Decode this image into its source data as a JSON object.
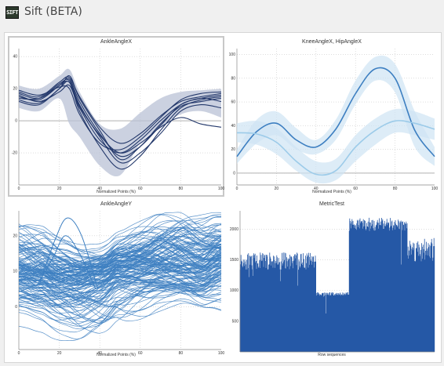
{
  "window": {
    "title": "Sift (BETA)",
    "icon_text": "SIFT"
  },
  "colors": {
    "dark_navy": "#23386b",
    "mid_blue": "#3d7fc1",
    "light_blue": "#9ccbe9",
    "bar_blue": "#2558a6",
    "band_dark": "#b9c2d6",
    "band_light": "#cfe4f4",
    "zero_line": "#b0b0b0",
    "grid": "#c9c9c9"
  },
  "panels": [
    {
      "title": "AnkleAngleX",
      "xlabel": "Normalized Points (%)",
      "chart_data": {
        "type": "line",
        "title": "AnkleAngleX",
        "xlabel": "Normalized Points (%)",
        "ylabel": "",
        "xlim": [
          0,
          100
        ],
        "ylim": [
          -40,
          45
        ],
        "xticks": [
          0,
          20,
          40,
          60,
          80,
          100
        ],
        "yticks": [
          -20,
          0,
          20,
          40
        ],
        "band": {
          "x": [
            0,
            10,
            20,
            25,
            30,
            40,
            50,
            60,
            70,
            80,
            90,
            100
          ],
          "upper": [
            22,
            20,
            28,
            32,
            18,
            -2,
            -5,
            5,
            14,
            18,
            19,
            20
          ],
          "lower": [
            8,
            6,
            14,
            -2,
            -10,
            -28,
            -34,
            -14,
            -4,
            4,
            6,
            2
          ]
        },
        "series": [
          {
            "values": [
              15,
              13,
              22,
              26,
              12,
              -8,
              -22,
              -16,
              -3,
              10,
              14,
              16
            ]
          },
          {
            "values": [
              18,
              15,
              24,
              27,
              15,
              -4,
              -14,
              -8,
              3,
              12,
              15,
              17
            ]
          },
          {
            "values": [
              12,
              10,
              20,
              24,
              6,
              -16,
              -30,
              -22,
              -6,
              8,
              13,
              15
            ]
          },
          {
            "values": [
              16,
              12,
              18,
              22,
              8,
              -12,
              -20,
              -12,
              0,
              10,
              14,
              12
            ]
          },
          {
            "values": [
              14,
              14,
              23,
              25,
              10,
              -10,
              -26,
              -20,
              -8,
              6,
              10,
              8
            ]
          },
          {
            "values": [
              19,
              16,
              21,
              20,
              4,
              -14,
              -18,
              -10,
              2,
              13,
              17,
              18
            ]
          },
          {
            "values": [
              13,
              11,
              20,
              28,
              14,
              -6,
              -24,
              -16,
              -2,
              9,
              12,
              14
            ]
          },
          {
            "values": [
              17,
              14,
              22,
              24,
              9,
              -9,
              -20,
              -14,
              -4,
              2,
              -2,
              -4
            ]
          }
        ]
      }
    },
    {
      "title": "KneeAngleX, HipAngleX",
      "xlabel": "Normalized Points (%)",
      "chart_data": {
        "type": "line",
        "title": "KneeAngleX, HipAngleX",
        "xlabel": "Normalized Points (%)",
        "ylabel": "",
        "xlim": [
          0,
          100
        ],
        "ylim": [
          -10,
          105
        ],
        "xticks": [
          0,
          20,
          40,
          60,
          80,
          100
        ],
        "yticks": [
          0,
          20,
          40,
          60,
          80,
          100
        ],
        "series": [
          {
            "x": [
              0,
              10,
              20,
              30,
              40,
              50,
              60,
              70,
              80,
              90,
              100
            ],
            "values": [
              14,
              35,
              42,
              28,
              22,
              37,
              67,
              88,
              80,
              36,
              14
            ],
            "upper": [
              20,
              45,
              52,
              38,
              28,
              45,
              78,
              98,
              92,
              52,
              22
            ],
            "lower": [
              8,
              25,
              32,
              20,
              16,
              28,
              58,
              78,
              68,
              22,
              6
            ]
          },
          {
            "x": [
              0,
              10,
              20,
              30,
              40,
              50,
              60,
              70,
              80,
              90,
              100
            ],
            "values": [
              34,
              33,
              26,
              10,
              -1,
              2,
              22,
              36,
              44,
              42,
              37
            ],
            "upper": [
              42,
              44,
              38,
              22,
              10,
              12,
              32,
              46,
              54,
              52,
              46
            ],
            "lower": [
              26,
              24,
              16,
              2,
              -8,
              -6,
              10,
              24,
              34,
              32,
              28
            ]
          }
        ]
      }
    },
    {
      "title": "AnkleAngleY",
      "xlabel": "Normalized Points (%)",
      "chart_data": {
        "type": "line",
        "title": "AnkleAngleY",
        "xlabel": "Normalized Points (%)",
        "ylabel": "",
        "xlim": [
          0,
          100
        ],
        "ylim": [
          -12,
          27
        ],
        "xticks": [
          0,
          20,
          40,
          60,
          80,
          100
        ],
        "yticks": [
          0,
          10,
          20
        ],
        "series_count_approx": 150,
        "base_curve": {
          "x": [
            0,
            10,
            20,
            30,
            40,
            50,
            60,
            70,
            80,
            90,
            100
          ],
          "values": [
            9,
            8,
            6,
            5,
            6,
            9,
            10,
            11,
            11,
            10,
            12
          ]
        },
        "spread": 14,
        "outlier_peaks": [
          {
            "x": 24,
            "y": 25
          },
          {
            "x": 23,
            "y": 20
          }
        ]
      }
    },
    {
      "title": "MetricTest",
      "xlabel": "Row sequences",
      "chart_data": {
        "type": "bar",
        "title": "MetricTest",
        "xlabel": "Row sequences",
        "ylabel": "",
        "ylim": [
          0,
          2300
        ],
        "yticks": [
          500,
          1000,
          1500,
          2000
        ],
        "segments": [
          {
            "from": 0,
            "to": 0.39,
            "level": 1480,
            "noise": 140
          },
          {
            "from": 0.39,
            "to": 0.56,
            "level": 945,
            "noise": 30
          },
          {
            "from": 0.56,
            "to": 0.86,
            "level": 2080,
            "noise": 110
          },
          {
            "from": 0.86,
            "to": 1.0,
            "level": 1660,
            "noise": 200
          }
        ]
      }
    }
  ]
}
